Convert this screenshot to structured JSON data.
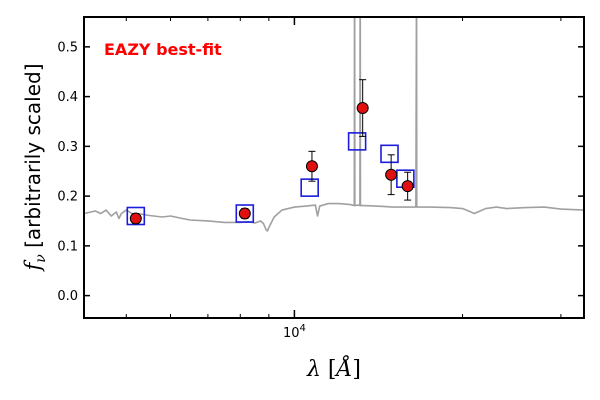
{
  "chart_data": {
    "type": "scatter",
    "annotation": "EAZY best-fit",
    "annotation_color": "#ff0000",
    "xlabel": "λ [Å]",
    "ylabel": "f_ν [arbitrarily scaled]",
    "xscale": "log",
    "xlim": [
      4200,
      33000
    ],
    "ylim": [
      -0.045,
      0.56
    ],
    "y_ticks": [
      0.0,
      0.1,
      0.2,
      0.3,
      0.4,
      0.5
    ],
    "y_tick_labels": [
      "0.0",
      "0.1",
      "0.2",
      "0.3",
      "0.4",
      "0.5"
    ],
    "x_major_ticks": [
      10000
    ],
    "x_tick_labels": [
      "10^4"
    ],
    "x_minor_ticks": [
      5000,
      6000,
      7000,
      8000,
      9000,
      20000,
      30000
    ],
    "grid": false,
    "colors": {
      "spectrum": "#a0a0a0",
      "model_box": "#1c1cdc",
      "observed_fill": "#e01010",
      "observed_edge": "#000000"
    },
    "series": [
      {
        "kind": "spectrum",
        "x": [
          4200,
          4400,
          4500,
          4600,
          4700,
          4800,
          4850,
          4900,
          5000,
          5200,
          5300,
          5500,
          5800,
          6000,
          6300,
          6500,
          7000,
          7500,
          8000,
          8300,
          8500,
          8700,
          8800,
          8900,
          8950,
          9000,
          9200,
          9500,
          10000,
          10500,
          10900,
          11000,
          11100,
          11500,
          12000,
          12600,
          12800,
          12810,
          12820,
          12830,
          12840,
          12850,
          13000,
          13100,
          13110,
          13120,
          13130,
          13140,
          13150,
          13300,
          14000,
          15000,
          16000,
          16500,
          16540,
          16550,
          16560,
          16570,
          16580,
          16600,
          17500,
          19000,
          20000,
          20500,
          21000,
          21500,
          22000,
          23000,
          24000,
          26000,
          28000,
          30000,
          33000
        ],
        "y": [
          0.165,
          0.17,
          0.165,
          0.172,
          0.16,
          0.168,
          0.155,
          0.165,
          0.172,
          0.16,
          0.164,
          0.161,
          0.158,
          0.16,
          0.155,
          0.152,
          0.15,
          0.147,
          0.147,
          0.148,
          0.146,
          0.15,
          0.145,
          0.132,
          0.13,
          0.137,
          0.158,
          0.172,
          0.178,
          0.18,
          0.182,
          0.16,
          0.18,
          0.185,
          0.185,
          0.183,
          0.181,
          0.6,
          0.6,
          0.181,
          0.181,
          0.181,
          0.182,
          0.181,
          0.6,
          0.6,
          0.181,
          0.181,
          0.181,
          0.181,
          0.18,
          0.178,
          0.178,
          0.178,
          0.6,
          0.6,
          0.178,
          0.178,
          0.178,
          0.178,
          0.178,
          0.177,
          0.175,
          0.17,
          0.165,
          0.17,
          0.175,
          0.178,
          0.175,
          0.177,
          0.178,
          0.174,
          0.172
        ]
      },
      {
        "kind": "model_photometry",
        "x": [
          5200,
          8150,
          10650,
          12950,
          14800,
          15800
        ],
        "y": [
          0.16,
          0.165,
          0.217,
          0.31,
          0.285,
          0.235
        ]
      },
      {
        "kind": "observed_photometry",
        "x": [
          5200,
          8150,
          10750,
          13250,
          14900,
          15950
        ],
        "y": [
          0.155,
          0.165,
          0.26,
          0.377,
          0.243,
          0.22
        ],
        "yerr": [
          0.01,
          0.01,
          0.03,
          0.057,
          0.04,
          0.028
        ]
      }
    ]
  }
}
